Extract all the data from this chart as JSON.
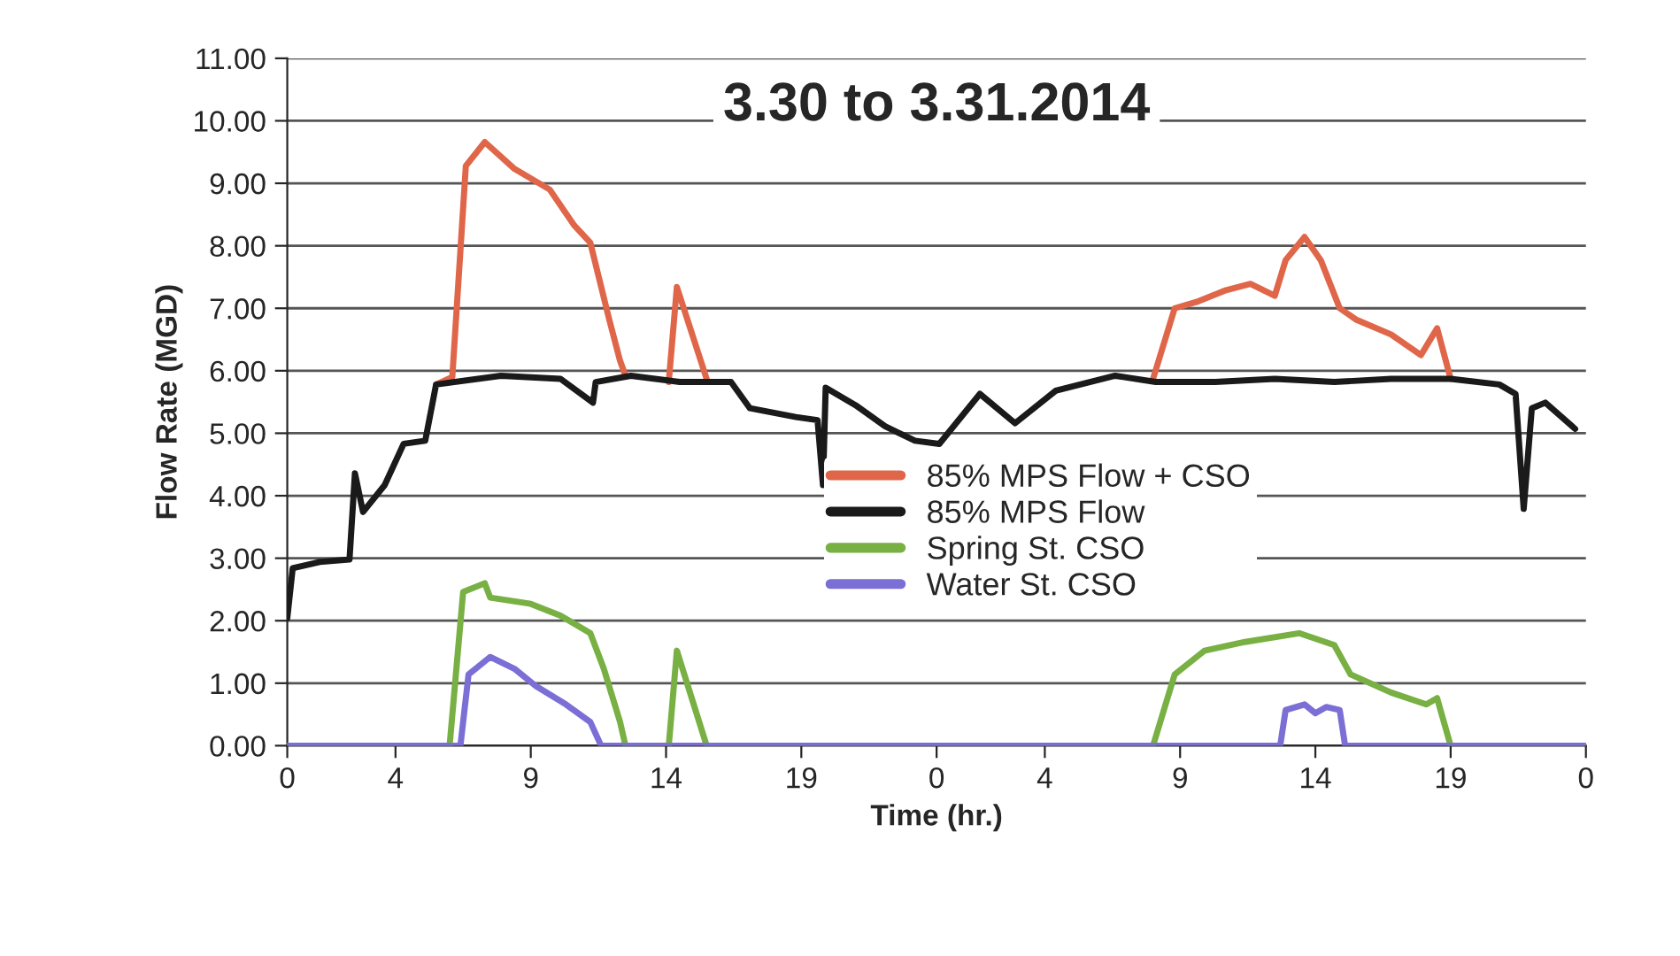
{
  "chart_data": {
    "type": "line",
    "title": "3.30 to 3.31.2014",
    "xlabel": "Time (hr.)",
    "ylabel": "Flow Rate (MGD)",
    "xlim": [
      "2014-03-30T00:00",
      "2014-04-01T00:00"
    ],
    "xticks": [
      {
        "value": "2014-03-30T00:00",
        "label": "0"
      },
      {
        "value": "2014-03-30T04:00",
        "label": "4"
      },
      {
        "value": "2014-03-30T09:00",
        "label": "9"
      },
      {
        "value": "2014-03-30T14:00",
        "label": "14"
      },
      {
        "value": "2014-03-30T19:00",
        "label": "19"
      },
      {
        "value": "2014-03-31T00:00",
        "label": "0"
      },
      {
        "value": "2014-03-31T04:00",
        "label": "4"
      },
      {
        "value": "2014-03-31T09:00",
        "label": "9"
      },
      {
        "value": "2014-03-31T14:00",
        "label": "14"
      },
      {
        "value": "2014-03-31T19:00",
        "label": "19"
      },
      {
        "value": "2014-04-01T00:00",
        "label": "0"
      }
    ],
    "ylim": [
      0,
      11
    ],
    "yticks": [
      {
        "value": 0,
        "label": "0.00"
      },
      {
        "value": 1,
        "label": "1.00"
      },
      {
        "value": 2,
        "label": "2.00"
      },
      {
        "value": 3,
        "label": "3.00"
      },
      {
        "value": 4,
        "label": "4.00"
      },
      {
        "value": 5,
        "label": "5.00"
      },
      {
        "value": 6,
        "label": "6.00"
      },
      {
        "value": 7,
        "label": "7.00"
      },
      {
        "value": 8,
        "label": "8.00"
      },
      {
        "value": 9,
        "label": "9.00"
      },
      {
        "value": 10,
        "label": "10.00"
      },
      {
        "value": 11,
        "label": "11.00"
      }
    ],
    "grid": "y",
    "legend": "center",
    "marker": "none",
    "line_style": "solid",
    "series": [
      {
        "name": "85% MPS Flow + CSO",
        "color": "#e0664a",
        "x": [
          "2014-03-30T05:30",
          "2014-03-30T06:06",
          "2014-03-30T06:36",
          "2014-03-30T07:18",
          "2014-03-30T08:24",
          "2014-03-30T09:42",
          "2014-03-30T10:36",
          "2014-03-30T11:12",
          "2014-03-30T11:54",
          "2014-03-30T12:18",
          "2014-03-30T12:30",
          "2014-03-30T13:18",
          "2014-03-30T14:06",
          "2014-03-30T14:24",
          "2014-03-30T15:30",
          "2014-03-31T00:00",
          "2014-03-31T08:00",
          "2014-03-31T08:48",
          "2014-03-31T09:36",
          "2014-03-31T10:42",
          "2014-03-31T11:36",
          "2014-03-31T12:30",
          "2014-03-31T12:54",
          "2014-03-31T13:36",
          "2014-03-31T14:12",
          "2014-03-31T14:54",
          "2014-03-31T15:30",
          "2014-03-31T16:48",
          "2014-03-31T17:54",
          "2014-03-31T18:30",
          "2014-03-31T19:00"
        ],
        "values": [
          5.78,
          5.9,
          9.28,
          9.66,
          9.23,
          8.9,
          8.33,
          8.05,
          6.82,
          6.16,
          5.92,
          null,
          5.82,
          7.34,
          5.87,
          null,
          5.87,
          7.0,
          7.1,
          7.29,
          7.39,
          7.2,
          7.77,
          8.14,
          7.77,
          7.0,
          6.82,
          6.58,
          6.25,
          6.68,
          5.87
        ]
      },
      {
        "name": "85% MPS Flow",
        "color": "#1a1a1a",
        "x": [
          "2014-03-30T00:00",
          "2014-03-30T00:12",
          "2014-03-30T01:12",
          "2014-03-30T02:18",
          "2014-03-30T02:30",
          "2014-03-30T02:48",
          "2014-03-30T03:36",
          "2014-03-30T04:18",
          "2014-03-30T05:06",
          "2014-03-30T05:30",
          "2014-03-30T07:54",
          "2014-03-30T10:06",
          "2014-03-30T11:18",
          "2014-03-30T11:24",
          "2014-03-30T12:42",
          "2014-03-30T14:30",
          "2014-03-30T16:24",
          "2014-03-30T17:06",
          "2014-03-30T18:48",
          "2014-03-30T19:36",
          "2014-03-30T19:48",
          "2014-03-30T19:54",
          "2014-03-30T21:00",
          "2014-03-30T22:06",
          "2014-03-30T23:12",
          "2014-03-31T00:06",
          "2014-03-31T01:36",
          "2014-03-31T02:54",
          "2014-03-31T04:24",
          "2014-03-31T06:36",
          "2014-03-31T08:06",
          "2014-03-31T10:18",
          "2014-03-31T12:30",
          "2014-03-31T14:42",
          "2014-03-31T16:48",
          "2014-03-31T19:00",
          "2014-03-31T20:48",
          "2014-03-31T21:24",
          "2014-03-31T21:42",
          "2014-03-31T22:00",
          "2014-03-31T22:30",
          "2014-03-31T23:36"
        ],
        "values": [
          2.04,
          2.84,
          2.94,
          2.98,
          4.36,
          3.74,
          4.17,
          4.83,
          4.88,
          5.78,
          5.92,
          5.87,
          5.49,
          5.82,
          5.92,
          5.82,
          5.82,
          5.4,
          5.26,
          5.21,
          4.17,
          5.73,
          5.45,
          5.11,
          4.88,
          4.83,
          5.63,
          5.16,
          5.68,
          5.92,
          5.82,
          5.82,
          5.87,
          5.82,
          5.87,
          5.87,
          5.78,
          5.63,
          3.79,
          5.4,
          5.49,
          5.07
        ]
      },
      {
        "name": "Spring St. CSO",
        "color": "#78b043",
        "x": [
          "2014-03-30T00:00",
          "2014-03-30T06:00",
          "2014-03-30T06:30",
          "2014-03-30T07:18",
          "2014-03-30T07:30",
          "2014-03-30T09:00",
          "2014-03-30T10:06",
          "2014-03-30T11:12",
          "2014-03-30T11:42",
          "2014-03-30T12:18",
          "2014-03-30T12:30",
          "2014-03-30T14:06",
          "2014-03-30T14:24",
          "2014-03-30T15:30",
          "2014-03-31T08:00",
          "2014-03-31T08:48",
          "2014-03-31T09:54",
          "2014-03-31T11:24",
          "2014-03-31T13:24",
          "2014-03-31T14:42",
          "2014-03-31T15:18",
          "2014-03-31T16:48",
          "2014-03-31T18:06",
          "2014-03-31T18:30",
          "2014-03-31T19:00",
          "2014-04-01T00:00"
        ],
        "values": [
          0,
          0,
          2.46,
          2.6,
          2.37,
          2.27,
          2.08,
          1.8,
          1.23,
          0.38,
          0,
          0,
          1.52,
          0,
          0,
          1.14,
          1.52,
          1.66,
          1.8,
          1.61,
          1.14,
          0.85,
          0.66,
          0.76,
          0,
          0
        ]
      },
      {
        "name": "Water St. CSO",
        "color": "#7b6fd6",
        "x": [
          "2014-03-30T00:00",
          "2014-03-30T06:24",
          "2014-03-30T06:42",
          "2014-03-30T07:30",
          "2014-03-30T08:24",
          "2014-03-30T09:12",
          "2014-03-30T10:18",
          "2014-03-30T11:12",
          "2014-03-30T11:36",
          "2014-03-31T12:42",
          "2014-03-31T12:54",
          "2014-03-31T13:36",
          "2014-03-31T14:00",
          "2014-03-31T14:24",
          "2014-03-31T14:54",
          "2014-03-31T15:06",
          "2014-04-01T00:00"
        ],
        "values": [
          0,
          0,
          1.14,
          1.42,
          1.23,
          0.95,
          0.66,
          0.38,
          0,
          0,
          0.57,
          0.66,
          0.52,
          0.62,
          0.57,
          0,
          0
        ]
      }
    ]
  }
}
